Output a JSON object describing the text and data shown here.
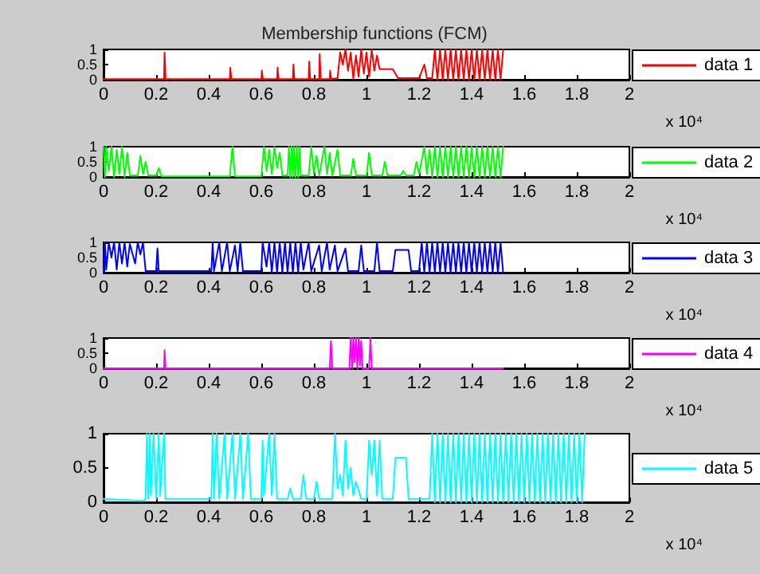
{
  "chart_data": [
    {
      "type": "line",
      "title": "Membership functions (FCM)",
      "annotations": [
        "x 10⁴"
      ],
      "legend": "right",
      "xlim": [
        0,
        2
      ],
      "xticks": [
        0,
        0.2,
        0.4,
        0.6,
        0.8,
        1,
        1.2,
        1.4,
        1.6,
        1.8,
        2
      ],
      "ylim": [
        0,
        1
      ],
      "yticks": [
        0,
        0.5,
        1
      ],
      "x": [
        0,
        0.23,
        0.232,
        0.236,
        0.48,
        0.482,
        0.486,
        0.6,
        0.602,
        0.606,
        0.66,
        0.662,
        0.666,
        0.72,
        0.722,
        0.726,
        0.78,
        0.782,
        0.786,
        0.82,
        0.822,
        0.826,
        0.86,
        0.862,
        0.866,
        0.89,
        0.9,
        0.91,
        0.92,
        0.93,
        0.94,
        0.95,
        0.96,
        0.97,
        0.98,
        0.99,
        1.0,
        1.01,
        1.02,
        1.03,
        1.04,
        1.05,
        1.1,
        1.12,
        1.2,
        1.22,
        1.23,
        1.25,
        1.26,
        1.27,
        1.28,
        1.29,
        1.3,
        1.31,
        1.32,
        1.33,
        1.34,
        1.35,
        1.36,
        1.37,
        1.38,
        1.39,
        1.4,
        1.41,
        1.42,
        1.43,
        1.44,
        1.45,
        1.46,
        1.47,
        1.48,
        1.49,
        1.5,
        1.51,
        1.52
      ],
      "series": [
        {
          "name": "data 1",
          "color": "#ff0000",
          "values": [
            0.02,
            0.02,
            0.9,
            0.02,
            0.02,
            0.4,
            0.02,
            0.02,
            0.3,
            0.02,
            0.02,
            0.4,
            0.02,
            0.02,
            0.5,
            0.02,
            0.02,
            0.6,
            0.02,
            0.02,
            0.85,
            0.02,
            0.02,
            0.3,
            0.02,
            0.05,
            0.9,
            0.5,
            1,
            0.3,
            0.9,
            0.05,
            0.8,
            0.1,
            1,
            0.2,
            0.9,
            0.1,
            1,
            0.3,
            0.8,
            0.35,
            0.35,
            0.05,
            0.05,
            0.5,
            0.05,
            0.05,
            1,
            0,
            1,
            0,
            1,
            0,
            1,
            0,
            1,
            0,
            1,
            0,
            1,
            0,
            1,
            0,
            1,
            0,
            1,
            0,
            1,
            0,
            1,
            0,
            1,
            0,
            1
          ]
        }
      ]
    },
    {
      "type": "line",
      "annotations": [
        "x 10⁴"
      ],
      "legend": "right",
      "xlim": [
        0,
        2
      ],
      "xticks": [
        0,
        0.2,
        0.4,
        0.6,
        0.8,
        1,
        1.2,
        1.4,
        1.6,
        1.8,
        2
      ],
      "ylim": [
        0,
        1
      ],
      "yticks": [
        0,
        0.5,
        1
      ],
      "x": [
        0,
        0.005,
        0.01,
        0.02,
        0.03,
        0.04,
        0.05,
        0.06,
        0.07,
        0.08,
        0.09,
        0.1,
        0.13,
        0.14,
        0.15,
        0.16,
        0.17,
        0.2,
        0.21,
        0.22,
        0.48,
        0.49,
        0.5,
        0.6,
        0.61,
        0.62,
        0.63,
        0.64,
        0.65,
        0.66,
        0.67,
        0.68,
        0.7,
        0.705,
        0.71,
        0.715,
        0.72,
        0.725,
        0.73,
        0.735,
        0.74,
        0.745,
        0.75,
        0.78,
        0.79,
        0.8,
        0.81,
        0.82,
        0.84,
        0.85,
        0.86,
        0.87,
        0.89,
        0.9,
        0.94,
        0.95,
        0.96,
        1.0,
        1.01,
        1.02,
        1.06,
        1.07,
        1.08,
        1.13,
        1.14,
        1.15,
        1.18,
        1.19,
        1.2,
        1.22,
        1.23,
        1.24,
        1.25,
        1.26,
        1.27,
        1.28,
        1.29,
        1.3,
        1.31,
        1.32,
        1.33,
        1.34,
        1.35,
        1.36,
        1.37,
        1.38,
        1.39,
        1.4,
        1.41,
        1.42,
        1.43,
        1.44,
        1.45,
        1.46,
        1.47,
        1.48,
        1.49,
        1.5,
        1.51,
        1.52
      ],
      "series": [
        {
          "name": "data 2",
          "color": "#00ff00",
          "values": [
            1,
            0,
            1,
            0.2,
            1,
            0,
            0.9,
            0.1,
            1,
            0,
            0.8,
            0.05,
            0.05,
            0.7,
            0.1,
            0.5,
            0.05,
            0.05,
            0.3,
            0.02,
            0.02,
            1,
            0.02,
            0.02,
            1,
            0.2,
            0.9,
            0.1,
            1,
            0.3,
            0.8,
            0.05,
            0.05,
            1,
            0,
            1,
            0,
            1,
            0,
            1,
            0,
            1,
            0.05,
            0.05,
            1,
            0.1,
            0.7,
            0.05,
            1,
            0.1,
            0.8,
            0.05,
            0.9,
            0.05,
            0.05,
            0.6,
            0.05,
            0.05,
            0.8,
            0.05,
            0.05,
            0.5,
            0.05,
            0.05,
            0.2,
            0.05,
            0.05,
            0.5,
            0.1,
            1,
            0.1,
            0.9,
            0,
            1,
            0,
            1,
            0,
            1,
            0,
            1,
            0,
            1,
            0,
            1,
            0,
            1,
            0,
            1,
            0,
            1,
            0,
            1,
            0,
            1,
            0,
            1,
            0,
            1,
            0,
            1
          ]
        }
      ]
    },
    {
      "type": "line",
      "annotations": [
        "x 10⁴"
      ],
      "legend": "right",
      "xlim": [
        0,
        2
      ],
      "xticks": [
        0,
        0.2,
        0.4,
        0.6,
        0.8,
        1,
        1.2,
        1.4,
        1.6,
        1.8,
        2
      ],
      "ylim": [
        0,
        1
      ],
      "yticks": [
        0,
        0.5,
        1
      ],
      "x": [
        0,
        0.005,
        0.01,
        0.02,
        0.03,
        0.04,
        0.05,
        0.06,
        0.07,
        0.08,
        0.09,
        0.1,
        0.12,
        0.13,
        0.14,
        0.15,
        0.16,
        0.2,
        0.205,
        0.21,
        0.41,
        0.415,
        0.42,
        0.44,
        0.45,
        0.47,
        0.48,
        0.5,
        0.51,
        0.52,
        0.53,
        0.6,
        0.605,
        0.62,
        0.63,
        0.64,
        0.65,
        0.66,
        0.67,
        0.68,
        0.69,
        0.7,
        0.71,
        0.72,
        0.73,
        0.74,
        0.75,
        0.76,
        0.78,
        0.79,
        0.82,
        0.83,
        0.85,
        0.86,
        0.88,
        0.89,
        0.92,
        0.93,
        0.97,
        0.98,
        0.99,
        1.03,
        1.04,
        1.05,
        1.1,
        1.11,
        1.16,
        1.17,
        1.2,
        1.21,
        1.22,
        1.23,
        1.24,
        1.25,
        1.26,
        1.27,
        1.28,
        1.29,
        1.3,
        1.31,
        1.32,
        1.33,
        1.34,
        1.35,
        1.36,
        1.37,
        1.38,
        1.39,
        1.4,
        1.41,
        1.42,
        1.43,
        1.44,
        1.45,
        1.46,
        1.47,
        1.48,
        1.49,
        1.5,
        1.51,
        1.52
      ],
      "series": [
        {
          "name": "data 3",
          "color": "#0000ff",
          "values": [
            0,
            1,
            0.1,
            1,
            0.5,
            1,
            0.1,
            1,
            0.3,
            1,
            0.2,
            0.95,
            0.3,
            1,
            0.6,
            1,
            0.05,
            0.05,
            0.8,
            0.05,
            0.05,
            1,
            0.05,
            1,
            0.05,
            1,
            0.05,
            0.9,
            0.05,
            1,
            0.05,
            0.05,
            1,
            0.2,
            1,
            0,
            1,
            0,
            1,
            0,
            1,
            0,
            1,
            0,
            1,
            0,
            1,
            0.1,
            1,
            0.05,
            0.9,
            0.05,
            1,
            0.1,
            0.9,
            0.05,
            0.8,
            0.05,
            0.05,
            0.9,
            0.05,
            0.05,
            1,
            0.05,
            0.05,
            0.75,
            0.75,
            0.05,
            0.05,
            1,
            0,
            1,
            0,
            1,
            0,
            1,
            0,
            1,
            0,
            1,
            0,
            1,
            0,
            1,
            0,
            1,
            0,
            1,
            0,
            1,
            0,
            1,
            0,
            1,
            0,
            1,
            0,
            1,
            0,
            1,
            0
          ]
        }
      ]
    },
    {
      "type": "line",
      "annotations": [
        "x 10⁴"
      ],
      "legend": "right",
      "xlim": [
        0,
        2
      ],
      "xticks": [
        0,
        0.2,
        0.4,
        0.6,
        0.8,
        1,
        1.2,
        1.4,
        1.6,
        1.8,
        2
      ],
      "ylim": [
        0,
        1
      ],
      "yticks": [
        0,
        0.5,
        1
      ],
      "x": [
        0,
        0.23,
        0.232,
        0.236,
        0.86,
        0.865,
        0.87,
        0.935,
        0.94,
        0.945,
        0.95,
        0.955,
        0.96,
        0.965,
        0.97,
        0.975,
        0.98,
        0.985,
        1.01,
        1.015,
        1.02,
        1.52
      ],
      "series": [
        {
          "name": "data 4",
          "color": "#ff00ff",
          "values": [
            0,
            0,
            0.6,
            0,
            0,
            0.9,
            0,
            0,
            1,
            0,
            1,
            0.2,
            1,
            0,
            1,
            0.1,
            0.9,
            0,
            0,
            1,
            0,
            0
          ]
        }
      ]
    },
    {
      "type": "line",
      "annotations": [
        "x 10⁴"
      ],
      "legend": "right",
      "xlim": [
        0,
        2
      ],
      "xticks": [
        0,
        0.2,
        0.4,
        0.6,
        0.8,
        1,
        1.2,
        1.4,
        1.6,
        1.8,
        2
      ],
      "ylim": [
        0,
        1
      ],
      "yticks": [
        0,
        0.5,
        1
      ],
      "x": [
        0,
        0.15,
        0.16,
        0.165,
        0.17,
        0.175,
        0.18,
        0.19,
        0.2,
        0.21,
        0.215,
        0.23,
        0.235,
        0.41,
        0.415,
        0.42,
        0.43,
        0.44,
        0.46,
        0.47,
        0.49,
        0.5,
        0.52,
        0.53,
        0.55,
        0.56,
        0.6,
        0.605,
        0.61,
        0.63,
        0.64,
        0.65,
        0.66,
        0.7,
        0.71,
        0.72,
        0.75,
        0.76,
        0.77,
        0.8,
        0.81,
        0.82,
        0.87,
        0.88,
        0.89,
        0.9,
        0.91,
        0.92,
        0.93,
        0.94,
        0.95,
        0.96,
        0.98,
        1.0,
        1.01,
        1.02,
        1.03,
        1.04,
        1.05,
        1.06,
        1.1,
        1.11,
        1.15,
        1.16,
        1.24,
        1.25,
        1.26,
        1.27,
        1.28,
        1.29,
        1.3,
        1.31,
        1.32,
        1.33,
        1.34,
        1.35,
        1.36,
        1.37,
        1.38,
        1.39,
        1.4,
        1.41,
        1.42,
        1.43,
        1.44,
        1.45,
        1.46,
        1.47,
        1.48,
        1.49,
        1.5,
        1.51,
        1.52,
        1.53,
        1.54,
        1.55,
        1.56,
        1.57,
        1.58,
        1.59,
        1.6,
        1.61,
        1.62,
        1.63,
        1.64,
        1.65,
        1.66,
        1.67,
        1.68,
        1.69,
        1.7,
        1.71,
        1.72,
        1.73,
        1.74,
        1.75,
        1.76,
        1.77,
        1.78,
        1.79,
        1.8,
        1.81,
        1.82,
        1.83
      ],
      "series": [
        {
          "name": "data 5",
          "color": "#00ffff",
          "values": [
            0.05,
            0.02,
            0.05,
            1,
            0.05,
            1,
            0.1,
            1,
            0.05,
            1,
            0.1,
            1,
            0.05,
            0.05,
            1,
            0.05,
            1,
            0.05,
            1,
            0.05,
            1,
            0.05,
            1,
            0.05,
            1,
            0.05,
            0.05,
            0.9,
            0.1,
            1,
            0.1,
            1,
            0.05,
            0.05,
            0.2,
            0.05,
            0.05,
            0.4,
            0.05,
            0.05,
            0.3,
            0.05,
            0.05,
            1,
            0.2,
            0.4,
            0.1,
            0.9,
            0.2,
            0.5,
            0.1,
            0.3,
            0.05,
            0.05,
            0.9,
            0.4,
            0.9,
            0.1,
            0.9,
            0.05,
            0.05,
            0.65,
            0.65,
            0.05,
            0.05,
            1,
            0,
            1,
            0,
            1,
            0,
            1,
            0,
            1,
            0,
            1,
            0,
            1,
            0,
            1,
            0,
            1,
            0,
            1,
            0,
            1,
            0,
            1,
            0,
            1,
            0,
            1,
            0,
            1,
            0,
            1,
            0,
            1,
            0,
            1,
            0,
            1,
            0,
            1,
            0,
            1,
            0,
            1,
            0,
            1,
            0,
            1,
            0,
            1,
            0,
            1,
            0,
            1,
            0,
            1,
            0,
            1,
            0,
            1
          ]
        }
      ]
    }
  ]
}
